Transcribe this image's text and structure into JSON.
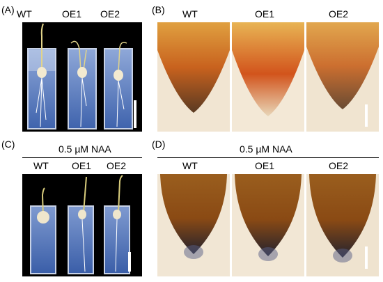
{
  "panels": {
    "A": {
      "letter": "(A)",
      "labels": [
        "WT",
        "OE1",
        "OE2"
      ]
    },
    "B": {
      "letter": "(B)",
      "labels": [
        "WT",
        "OE1",
        "OE2"
      ]
    },
    "C": {
      "letter": "(C)",
      "treatment": "0.5 µM NAA",
      "labels": [
        "WT",
        "OE1",
        "OE2"
      ]
    },
    "D": {
      "letter": "(D)",
      "treatment": "0.5 µM NAA",
      "labels": [
        "WT",
        "OE1",
        "OE2"
      ]
    }
  },
  "colors": {
    "photo_bg": "#000000",
    "gel_blue": "#4a6fb8",
    "root_tip_orange": "#c8621e",
    "root_tip_brown": "#8a4a14",
    "micro_bg": "#f1e5d2",
    "scale_bar": "#ffffff"
  }
}
